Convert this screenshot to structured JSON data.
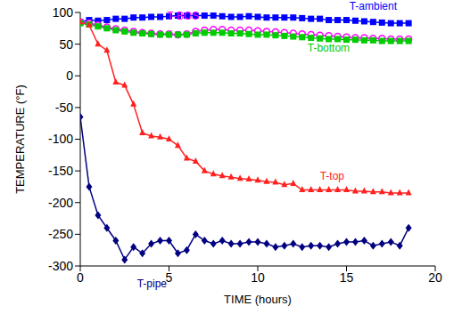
{
  "chart_data": {
    "type": "line",
    "xlabel": "TIME (hours)",
    "ylabel": "TEMPERATURE (°F)",
    "x": [
      0,
      0.5,
      1,
      1.5,
      2,
      2.5,
      3,
      3.5,
      4,
      4.5,
      5,
      5.5,
      6,
      6.5,
      7,
      7.5,
      8,
      8.5,
      9,
      9.5,
      10,
      10.5,
      11,
      11.5,
      12,
      12.5,
      13,
      13.5,
      14,
      14.5,
      15,
      15.5,
      16,
      16.5,
      17,
      17.5,
      18,
      18.5
    ],
    "xlim": [
      0,
      20
    ],
    "xticks": [
      0,
      5,
      10,
      15,
      20
    ],
    "ylim": [
      -300,
      100
    ],
    "yticks": [
      -300,
      -250,
      -200,
      -150,
      -100,
      -50,
      0,
      50,
      100
    ],
    "grid": false,
    "series": [
      {
        "name": "T-ambient",
        "color": "#0000ff",
        "marker": "square",
        "values": [
          85,
          88,
          87,
          88,
          90,
          90,
          92,
          92,
          93,
          93,
          94,
          95,
          95,
          95,
          95,
          95,
          94,
          93,
          93,
          94,
          93,
          92,
          92,
          92,
          92,
          91,
          90,
          90,
          88,
          88,
          88,
          87,
          86,
          85,
          84,
          83,
          83,
          83
        ]
      },
      {
        "name": "T-BOS",
        "color": "#ff00ff",
        "marker": "open_circle",
        "values": [
          85,
          83,
          80,
          77,
          74,
          72,
          70,
          68,
          67,
          66,
          66,
          65,
          66,
          70,
          72,
          73,
          73,
          72,
          72,
          72,
          71,
          70,
          69,
          68,
          67,
          66,
          65,
          64,
          63,
          62,
          61,
          60,
          60,
          59,
          59,
          58,
          58,
          58
        ]
      },
      {
        "name": "T-bottom",
        "color": "#00cc00",
        "marker": "square",
        "values": [
          83,
          81,
          78,
          75,
          72,
          70,
          68,
          67,
          66,
          65,
          65,
          65,
          65,
          67,
          68,
          68,
          68,
          67,
          67,
          66,
          65,
          65,
          64,
          63,
          62,
          61,
          60,
          59,
          58,
          58,
          57,
          57,
          56,
          56,
          55,
          55,
          55,
          55
        ]
      },
      {
        "name": "T-top",
        "color": "#ff2020",
        "marker": "triangle",
        "values": [
          85,
          80,
          50,
          40,
          -10,
          -15,
          -45,
          -90,
          -95,
          -97,
          -100,
          -110,
          -130,
          -135,
          -150,
          -155,
          -158,
          -160,
          -162,
          -163,
          -165,
          -167,
          -168,
          -172,
          -170,
          -180,
          -180,
          -180,
          -180,
          -180,
          -180,
          -182,
          -182,
          -183,
          -183,
          -185,
          -185,
          -185
        ]
      },
      {
        "name": "T-pipe",
        "color": "#000080",
        "marker": "diamond",
        "values": [
          -65,
          -175,
          -220,
          -240,
          -260,
          -290,
          -270,
          -280,
          -265,
          -260,
          -260,
          -280,
          -275,
          -250,
          -260,
          -265,
          -260,
          -265,
          -265,
          -262,
          -262,
          -265,
          -270,
          -268,
          -265,
          -270,
          -268,
          -268,
          -270,
          -265,
          -262,
          -262,
          -260,
          -268,
          -265,
          -262,
          -268,
          -240
        ]
      }
    ]
  }
}
